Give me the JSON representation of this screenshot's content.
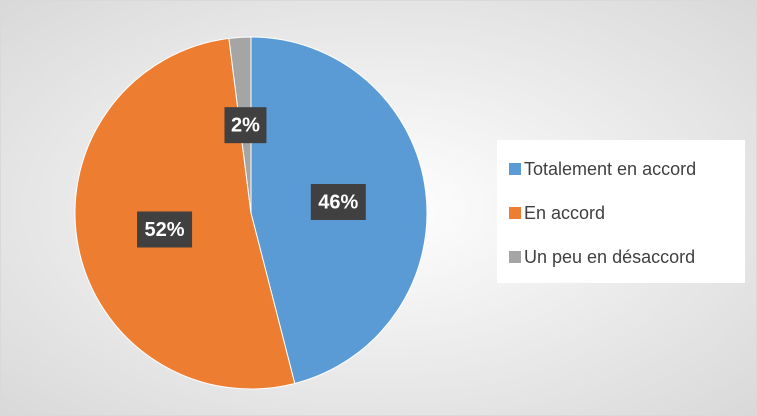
{
  "chart_data": {
    "type": "pie",
    "categories": [
      "Totalement en accord",
      "En accord",
      "Un peu en désaccord"
    ],
    "values": [
      46,
      52,
      2
    ],
    "value_labels": [
      "46%",
      "52%",
      "2%"
    ],
    "colors": [
      "#5b9bd5",
      "#ed7d31",
      "#a5a5a5"
    ],
    "legend": "right"
  }
}
